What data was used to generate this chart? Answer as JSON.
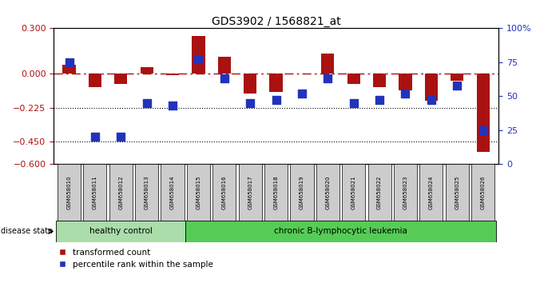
{
  "title": "GDS3902 / 1568821_at",
  "samples": [
    "GSM658010",
    "GSM658011",
    "GSM658012",
    "GSM658013",
    "GSM658014",
    "GSM658015",
    "GSM658016",
    "GSM658017",
    "GSM658018",
    "GSM658019",
    "GSM658020",
    "GSM658021",
    "GSM658022",
    "GSM658023",
    "GSM658024",
    "GSM658025",
    "GSM658026"
  ],
  "red_values": [
    0.06,
    -0.09,
    -0.07,
    0.04,
    -0.01,
    0.25,
    0.11,
    -0.13,
    -0.12,
    0.0,
    0.13,
    -0.07,
    -0.09,
    -0.11,
    -0.18,
    -0.05,
    -0.52
  ],
  "blue_percentile": [
    75,
    20,
    20,
    45,
    43,
    77,
    63,
    45,
    47,
    52,
    63,
    45,
    47,
    52,
    47,
    58,
    25
  ],
  "ylim_left": [
    -0.6,
    0.3
  ],
  "ylim_right": [
    0,
    100
  ],
  "yticks_left": [
    0.3,
    0.0,
    -0.225,
    -0.45,
    -0.6
  ],
  "yticks_right": [
    100,
    75,
    50,
    25,
    0
  ],
  "hline_zero": 0.0,
  "hline_dotted1": -0.225,
  "hline_dotted2": -0.45,
  "healthy_count": 5,
  "group1_label": "healthy control",
  "group2_label": "chronic B-lymphocytic leukemia",
  "disease_state_label": "disease state",
  "legend_red": "transformed count",
  "legend_blue": "percentile rank within the sample",
  "bar_color": "#aa1111",
  "dot_color": "#2233bb",
  "bar_width": 0.5,
  "dot_size": 55,
  "background_healthy": "#aaddaa",
  "background_leukemia": "#55cc55",
  "tick_label_bg": "#cccccc"
}
